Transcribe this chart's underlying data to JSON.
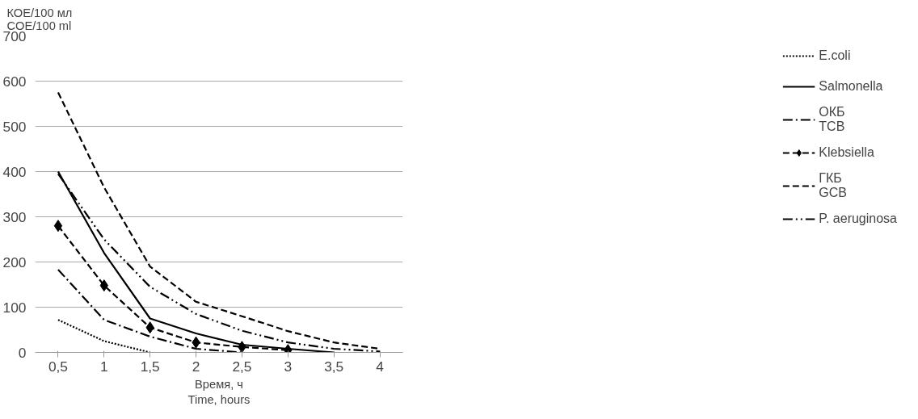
{
  "chart_data": {
    "type": "line",
    "categories": [
      "0,5",
      "1",
      "1,5",
      "2",
      "2,5",
      "3",
      "3,5",
      "4"
    ],
    "xlabel": "Время, ч\nTime, hours",
    "ylabel": "КОЕ/100 мл\nCOE/100 ml",
    "ylim": [
      0,
      700
    ],
    "yticks": [
      0,
      100,
      200,
      300,
      400,
      500,
      600,
      700
    ],
    "grid": "y",
    "legend": "right",
    "series": [
      {
        "name": "E.coli",
        "color": "#000000",
        "line_style": "dotted",
        "values": [
          72,
          25,
          0,
          null,
          null,
          null,
          null,
          null
        ]
      },
      {
        "name": "Salmonella",
        "color": "#000000",
        "line_style": "solid",
        "values": [
          400,
          220,
          75,
          42,
          17,
          8,
          0,
          null
        ]
      },
      {
        "name": "ОКБ\nTCB",
        "color": "#000000",
        "line_style": "dashdot",
        "values": [
          183,
          72,
          35,
          8,
          0,
          null,
          null,
          null
        ]
      },
      {
        "name": "Klebsiella",
        "color": "#000000",
        "line_style": "dashed",
        "marker": "diamond",
        "values": [
          280,
          148,
          55,
          22,
          12,
          5,
          null,
          null
        ]
      },
      {
        "name": "ГКБ\nGCB",
        "color": "#000000",
        "line_style": "dashed",
        "values": [
          575,
          365,
          190,
          112,
          80,
          47,
          22,
          8
        ]
      },
      {
        "name": "P. aeruginosa",
        "color": "#000000",
        "line_style": "dashdotdot",
        "values": [
          395,
          250,
          145,
          85,
          48,
          22,
          8,
          2
        ]
      }
    ]
  }
}
